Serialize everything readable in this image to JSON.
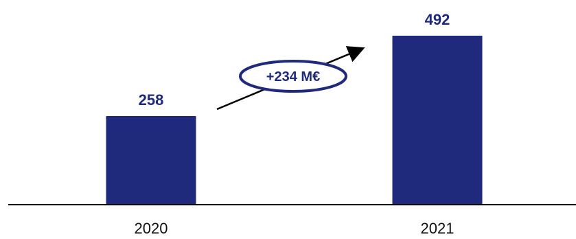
{
  "chart_data": {
    "type": "bar",
    "categories": [
      "2020",
      "2021"
    ],
    "values": [
      258,
      492
    ],
    "title": "",
    "xlabel": "",
    "ylabel": "",
    "ylim": [
      0,
      550
    ],
    "grid": false,
    "legend": "none",
    "data_labels": [
      "258",
      "492"
    ],
    "annotation": "+234 M€"
  },
  "colors": {
    "bar": "#1f2a7c",
    "label": "#1f2a7c",
    "axis": "#000000",
    "annotation_text": "#1f2a7c",
    "annotation_outline": "#1f2a7c",
    "arrow": "#000000"
  }
}
